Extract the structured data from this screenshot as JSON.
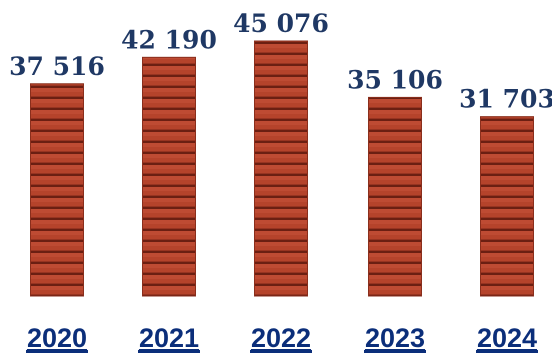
{
  "chart_data": {
    "type": "bar",
    "categories": [
      "2020",
      "2021",
      "2022",
      "2023",
      "2024"
    ],
    "values": [
      37516,
      42190,
      45076,
      35106,
      31703
    ],
    "value_labels": [
      "37 516",
      "42 190",
      "45 076",
      "35 106",
      "31 703"
    ],
    "ylim": [
      0,
      45076
    ],
    "grid": false,
    "legend": "none",
    "colors": {
      "brick": "#b5432b",
      "brick_dark": "#8a2e1c",
      "mortar": "#6b1f12",
      "value_text": "#1f3864",
      "category_text": "#0b2e7a"
    }
  }
}
